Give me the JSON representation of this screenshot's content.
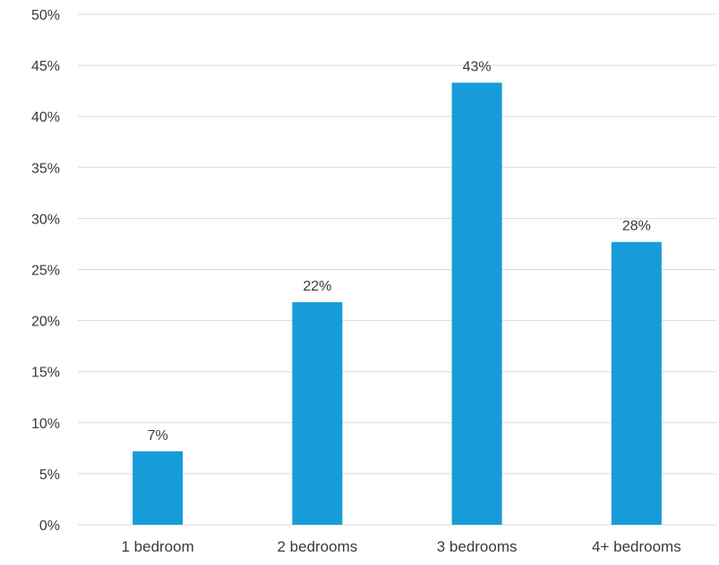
{
  "chart_data": {
    "type": "bar",
    "title": "",
    "xlabel": "",
    "ylabel": "",
    "categories": [
      "1 bedroom",
      "2 bedrooms",
      "3 bedrooms",
      "4+ bedrooms"
    ],
    "values": [
      7.2,
      21.8,
      43.3,
      27.7
    ],
    "data_labels": [
      "7%",
      "22%",
      "43%",
      "28%"
    ],
    "ylim": [
      0,
      50
    ],
    "y_ticks": [
      "0%",
      "5%",
      "10%",
      "15%",
      "20%",
      "25%",
      "30%",
      "35%",
      "40%",
      "45%",
      "50%"
    ],
    "grid": true,
    "legend": "none",
    "colors": {
      "bar": "#189CD9",
      "grid": "#D9D9D9",
      "text": "#3A3A3A"
    }
  }
}
